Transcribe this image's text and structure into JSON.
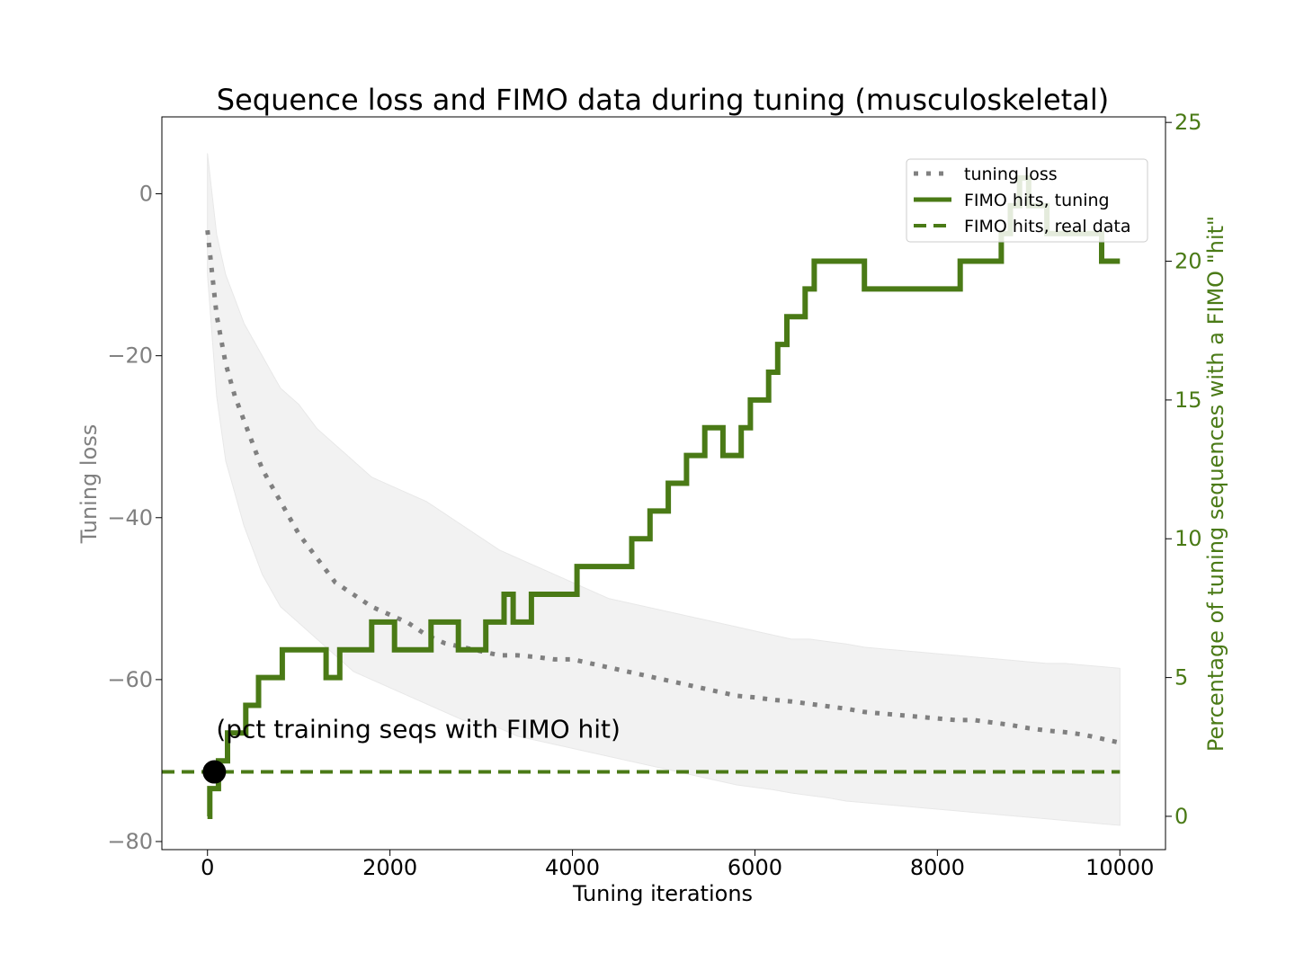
{
  "chart_data": {
    "type": "line",
    "title": "Sequence loss and FIMO data during tuning (musculoskeletal)",
    "xlabel": "Tuning iterations",
    "ylabel_left": "Tuning loss",
    "ylabel_right": "Percentage of tuning sequences with a FIMO \"hit\"",
    "xlim": [
      -500,
      10500
    ],
    "ylim_left": [
      -81,
      9.5
    ],
    "ylim_right": [
      -1.2,
      25.2
    ],
    "x_ticks": [
      0,
      2000,
      4000,
      6000,
      8000,
      10000
    ],
    "x_tick_labels": [
      "0",
      "2000",
      "4000",
      "6000",
      "8000",
      "10000"
    ],
    "y_left_ticks": [
      0,
      -20,
      -40,
      -60,
      -80
    ],
    "y_left_tick_labels": [
      "0",
      "−20",
      "−40",
      "−60",
      "−80"
    ],
    "y_right_ticks": [
      0,
      5,
      10,
      15,
      20,
      25
    ],
    "y_right_tick_labels": [
      "0",
      "5",
      "10",
      "15",
      "20",
      "25"
    ],
    "colors": {
      "loss": "#808080",
      "band": "#f2f2f2",
      "fimo": "#4a7a16",
      "left_axis": "#808080",
      "right_axis": "#4a7a16",
      "marker": "#000000"
    },
    "legend": {
      "placement": "upper-right",
      "entries": [
        {
          "label": "tuning loss",
          "style": "dotted"
        },
        {
          "label": "FIMO hits, tuning",
          "style": "solid"
        },
        {
          "label": "FIMO hits, real data",
          "style": "dashed"
        }
      ]
    },
    "series": [
      {
        "name": "tuning loss",
        "axis": "left",
        "x": [
          0,
          100,
          200,
          300,
          400,
          500,
          600,
          700,
          800,
          900,
          1000,
          1200,
          1400,
          1600,
          1800,
          2000,
          2200,
          2400,
          2600,
          2800,
          3000,
          3200,
          3400,
          3600,
          3800,
          4000,
          4200,
          4400,
          4600,
          4800,
          5000,
          5200,
          5400,
          5600,
          5800,
          6000,
          6200,
          6400,
          6600,
          6800,
          7000,
          7200,
          7400,
          7600,
          7800,
          8000,
          8200,
          8400,
          8600,
          8800,
          9000,
          9200,
          9400,
          9600,
          9800,
          10000
        ],
        "y": [
          -4.5,
          -15,
          -21,
          -25,
          -28,
          -31,
          -34,
          -36,
          -38,
          -40,
          -42,
          -45,
          -48,
          -49.5,
          -51,
          -52,
          -53,
          -54.5,
          -55.5,
          -56,
          -56.5,
          -57,
          -57,
          -57.2,
          -57.5,
          -57.5,
          -58,
          -58.5,
          -59,
          -59.5,
          -60,
          -60.5,
          -61,
          -61.5,
          -62,
          -62.2,
          -62.5,
          -62.7,
          -63,
          -63.3,
          -63.6,
          -64,
          -64.2,
          -64.4,
          -64.6,
          -64.8,
          -65,
          -65,
          -65.3,
          -65.6,
          -66,
          -66.3,
          -66.5,
          -66.8,
          -67.3,
          -67.8
        ]
      },
      {
        "name": "FIMO hits, tuning",
        "axis": "right",
        "x": [
          0,
          25,
          120,
          220,
          320,
          420,
          560,
          700,
          820,
          1000,
          1200,
          1300,
          1450,
          1600,
          1700,
          1800,
          1950,
          2050,
          2150,
          2250,
          2350,
          2450,
          2550,
          2650,
          2750,
          2900,
          3050,
          3150,
          3250,
          3350,
          3450,
          3550,
          3650,
          3750,
          3850,
          3950,
          4050,
          4150,
          4250,
          4350,
          4500,
          4650,
          4750,
          4850,
          4950,
          5050,
          5150,
          5250,
          5350,
          5450,
          5550,
          5650,
          5750,
          5850,
          5950,
          6050,
          6150,
          6250,
          6350,
          6450,
          6550,
          6650,
          6750,
          6850,
          6950,
          7050,
          7200,
          7350,
          7500,
          7650,
          7800,
          7950,
          8100,
          8250,
          8400,
          8550,
          8700,
          8800,
          8900,
          9000,
          9200,
          9400,
          9600,
          9800,
          9900,
          10000
        ],
        "y": [
          0,
          1,
          2,
          3,
          3,
          4,
          5,
          5,
          6,
          6,
          6,
          5,
          6,
          6,
          6,
          7,
          7,
          6,
          6,
          6,
          6,
          7,
          7,
          7,
          6,
          6,
          7,
          7,
          8,
          7,
          7,
          8,
          8,
          8,
          8,
          8,
          9,
          9,
          9,
          9,
          9,
          10,
          10,
          11,
          11,
          12,
          12,
          13,
          13,
          14,
          14,
          13,
          13,
          14,
          15,
          15,
          16,
          17,
          18,
          18,
          19,
          20,
          20,
          20,
          20,
          20,
          19,
          19,
          19,
          19,
          19,
          19,
          19,
          20,
          20,
          20,
          21,
          22,
          23,
          22,
          21,
          21,
          21,
          20,
          20,
          20
        ]
      },
      {
        "name": "FIMO hits, real data",
        "axis": "right",
        "y": 1.6
      }
    ],
    "band": {
      "x": [
        0,
        100,
        200,
        300,
        400,
        500,
        600,
        700,
        800,
        900,
        1000,
        1200,
        1400,
        1600,
        1800,
        2000,
        2200,
        2400,
        2600,
        2800,
        3000,
        3200,
        3400,
        3600,
        3800,
        4000,
        4200,
        4400,
        4600,
        4800,
        5000,
        5200,
        5400,
        5600,
        5800,
        6000,
        6200,
        6400,
        6600,
        6800,
        7000,
        7200,
        7400,
        7600,
        7800,
        8000,
        8200,
        8400,
        8600,
        8800,
        9000,
        9200,
        9400,
        9600,
        9800,
        10000
      ],
      "upper": [
        5,
        -5,
        -10,
        -13,
        -16,
        -18,
        -20,
        -22,
        -24,
        -25,
        -26,
        -29,
        -31,
        -33,
        -35,
        -36,
        -37,
        -38,
        -39.5,
        -41,
        -42.5,
        -44,
        -45,
        -46,
        -47,
        -48,
        -49,
        -50,
        -50.5,
        -51,
        -51.5,
        -52,
        -52.5,
        -53,
        -53.5,
        -54,
        -54.5,
        -55,
        -55,
        -55.3,
        -55.6,
        -56,
        -56.2,
        -56.4,
        -56.6,
        -56.8,
        -57,
        -57.2,
        -57.4,
        -57.6,
        -57.8,
        -58,
        -58,
        -58.2,
        -58.4,
        -58.6
      ],
      "lower": [
        -10,
        -25,
        -33,
        -37,
        -41,
        -44,
        -47,
        -49,
        -51,
        -52,
        -53,
        -55,
        -57,
        -59,
        -60,
        -61,
        -62,
        -63,
        -64,
        -65,
        -65.5,
        -66,
        -67,
        -67.5,
        -68,
        -68.5,
        -69,
        -69.5,
        -70,
        -70.5,
        -71,
        -71.5,
        -72,
        -72.5,
        -73,
        -73.3,
        -73.6,
        -74,
        -74.3,
        -74.6,
        -75,
        -75.2,
        -75.4,
        -75.6,
        -75.8,
        -76,
        -76.2,
        -76.4,
        -76.6,
        -76.8,
        -77,
        -77.2,
        -77.4,
        -77.6,
        -77.8,
        -78
      ]
    },
    "annotation": {
      "text": "(pct training seqs with FIMO hit)",
      "x": 75,
      "y_right": 1.6
    }
  }
}
